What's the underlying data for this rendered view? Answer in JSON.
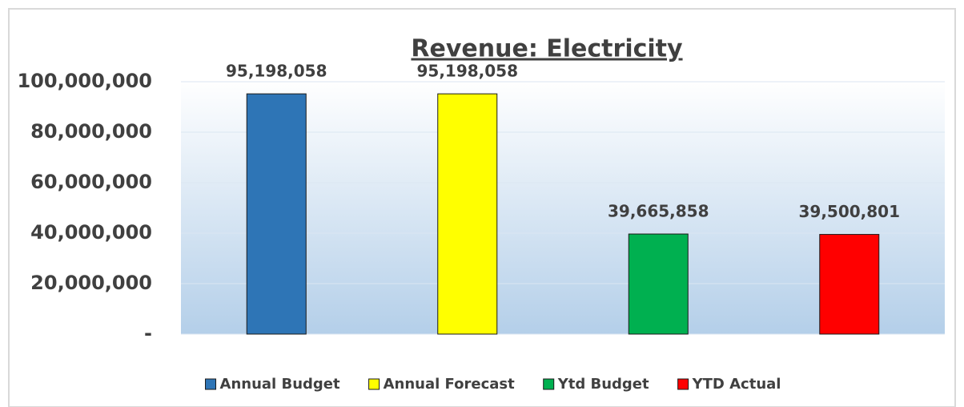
{
  "chart_data": {
    "type": "bar",
    "title": "Revenue: Electricity",
    "categories": [
      null
    ],
    "series": [
      {
        "name": "Annual Budget",
        "color": "#2e75b6",
        "values": [
          95198058
        ],
        "value_labels": [
          "95,198,058"
        ]
      },
      {
        "name": "Annual Forecast",
        "color": "#ffff00",
        "values": [
          95198058
        ],
        "value_labels": [
          "95,198,058"
        ]
      },
      {
        "name": "Ytd Budget",
        "color": "#00b050",
        "values": [
          39665858
        ],
        "value_labels": [
          "39,665,858"
        ]
      },
      {
        "name": "YTD Actual",
        "color": "#ff0000",
        "values": [
          39500801
        ],
        "value_labels": [
          "39,500,801"
        ]
      }
    ],
    "ylim": [
      0,
      100000000
    ],
    "yticks": [
      {
        "value": 0,
        "label": "-"
      },
      {
        "value": 20000000,
        "label": "20,000,000"
      },
      {
        "value": 40000000,
        "label": "40,000,000"
      },
      {
        "value": 60000000,
        "label": "60,000,000"
      },
      {
        "value": 80000000,
        "label": "80,000,000"
      },
      {
        "value": 100000000,
        "label": "100,000,000"
      }
    ],
    "grid": true,
    "legend": "bottom"
  }
}
